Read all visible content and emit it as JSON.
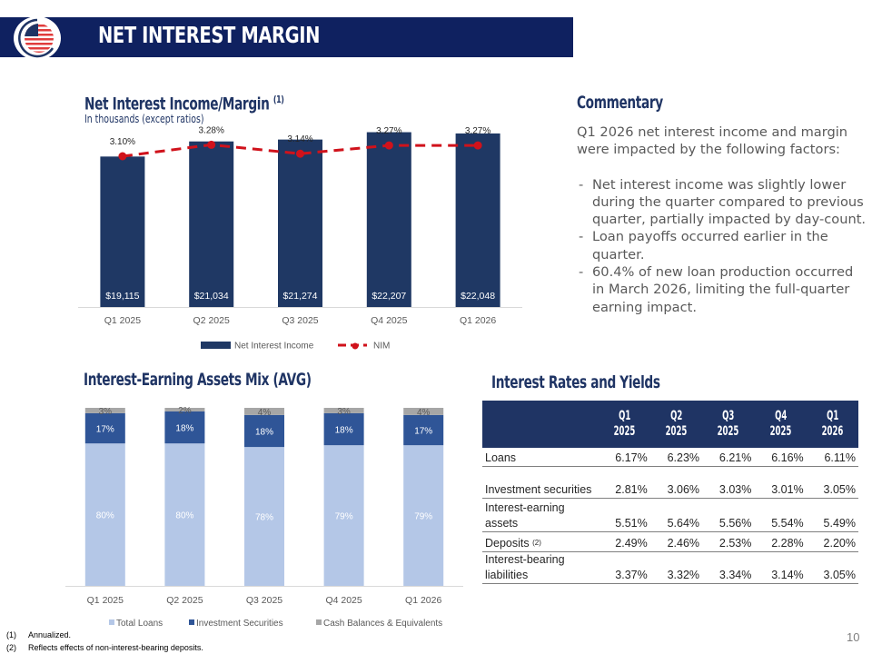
{
  "header": {
    "title": "NET INTEREST MARGIN",
    "logo_icon": "flag-globe-logo-icon",
    "bar_color": "#0f2160"
  },
  "nii_section": {
    "title": "Net Interest Income/Margin",
    "title_footnote": "(1)",
    "subtitle": "In thousands (except ratios)"
  },
  "commentary": {
    "title": "Commentary",
    "intro": "Q1 2026 net interest income and margin were impacted by the following factors:",
    "bullets": [
      "Net interest income was slightly lower during the quarter compared to previous quarter, partially impacted by day-count.",
      "Loan payoffs occurred earlier in the quarter.",
      "60.4% of new loan production occurred in March 2026, limiting the full-quarter earning impact."
    ]
  },
  "mix_section": {
    "title": "Interest-Earning Assets Mix (AVG)"
  },
  "rates_section": {
    "title": "Interest Rates and Yields",
    "columns": [
      {
        "line1": "Q1",
        "line2": "2025"
      },
      {
        "line1": "Q2",
        "line2": "2025"
      },
      {
        "line1": "Q3",
        "line2": "2025"
      },
      {
        "line1": "Q4",
        "line2": "2025"
      },
      {
        "line1": "Q1",
        "line2": "2026"
      }
    ],
    "rows": [
      {
        "label": "Loans",
        "footnote": "",
        "values": [
          "6.17%",
          "6.23%",
          "6.21%",
          "6.16%",
          "6.11%"
        ]
      },
      {
        "label": "Investment securities",
        "footnote": "",
        "values": [
          "2.81%",
          "3.06%",
          "3.03%",
          "3.01%",
          "3.05%"
        ]
      },
      {
        "label": "Interest-earning assets",
        "footnote": "",
        "values": [
          "5.51%",
          "5.64%",
          "5.56%",
          "5.54%",
          "5.49%"
        ]
      },
      {
        "label": "Deposits",
        "footnote": "(2)",
        "values": [
          "2.49%",
          "2.46%",
          "2.53%",
          "2.28%",
          "2.20%"
        ]
      },
      {
        "label": "Interest-bearing liabilities",
        "footnote": "",
        "values": [
          "3.37%",
          "3.32%",
          "3.34%",
          "3.14%",
          "3.05%"
        ]
      }
    ]
  },
  "footnotes": [
    {
      "num": "(1)",
      "text": "Annualized."
    },
    {
      "num": "(2)",
      "text": "Reflects effects of non-interest-bearing deposits."
    }
  ],
  "page_number": "10",
  "chart_data": [
    {
      "type": "bar",
      "title": "Net Interest Income/Margin (1)",
      "subtitle": "In thousands (except ratios)",
      "categories": [
        "Q1 2025",
        "Q2 2025",
        "Q3 2025",
        "Q4 2025",
        "Q1 2026"
      ],
      "series": [
        {
          "name": "Net Interest Income",
          "kind": "bar",
          "color": "#1f3864",
          "values": [
            19115,
            21034,
            21274,
            22207,
            22048
          ],
          "labels": [
            "$19,115",
            "$21,034",
            "$21,274",
            "$22,207",
            "$22,048"
          ]
        },
        {
          "name": "NIM",
          "kind": "line",
          "style": "dashed",
          "marker": "circle",
          "color": "#d0121b",
          "values": [
            3.1,
            3.28,
            3.14,
            3.27,
            3.27
          ],
          "labels": [
            "3.10%",
            "3.28%",
            "3.14%",
            "3.27%",
            "3.27%"
          ]
        }
      ],
      "legend": "bottom",
      "grid": false,
      "ylim": [
        0,
        27000
      ]
    },
    {
      "type": "bar",
      "stacked": true,
      "title": "Interest-Earning Assets Mix (AVG)",
      "categories": [
        "Q1 2025",
        "Q2 2025",
        "Q3 2025",
        "Q4 2025",
        "Q1 2026"
      ],
      "series": [
        {
          "name": "Total Loans",
          "color": "#b4c7e7",
          "values": [
            80,
            80,
            78,
            79,
            79
          ],
          "labels": [
            "80%",
            "80%",
            "78%",
            "79%",
            "79%"
          ]
        },
        {
          "name": "Investment Securities",
          "color": "#2f5597",
          "values": [
            17,
            18,
            18,
            18,
            17
          ],
          "labels": [
            "17%",
            "18%",
            "18%",
            "18%",
            "17%"
          ]
        },
        {
          "name": "Cash Balances & Equivalents",
          "color": "#a6a6a6",
          "values": [
            3,
            2,
            4,
            3,
            4
          ],
          "labels": [
            "3%",
            "2%",
            "4%",
            "3%",
            "4%"
          ]
        }
      ],
      "legend": "bottom",
      "grid": false,
      "ylim": [
        0,
        100
      ]
    }
  ]
}
